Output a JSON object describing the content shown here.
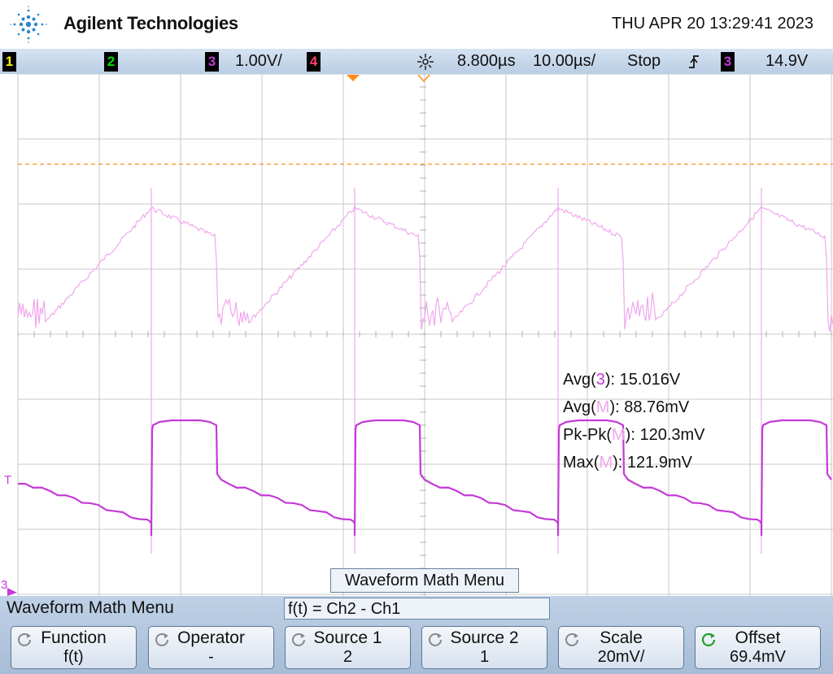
{
  "header": {
    "brand": "Agilent Technologies",
    "datetime": "THU APR 20 13:29:41 2023"
  },
  "status_bar": {
    "ch1": "1",
    "ch2": "2",
    "ch3": "3",
    "ch3_scale": "1.00V/",
    "ch4": "4",
    "delay": "8.800µs",
    "timebase": "10.00µs/",
    "run_state": "Stop",
    "trigger_source": "3",
    "trigger_level": "14.9V"
  },
  "markers": {
    "trigger_level_marker": "T",
    "ch3_ground_marker": "3"
  },
  "measurements": {
    "avg3": {
      "label": "Avg(",
      "src": "3",
      "tail": "): 15.016V"
    },
    "avgm": {
      "label": "Avg(",
      "src": "M",
      "tail": "): 88.76mV"
    },
    "pkpk": {
      "label": "Pk-Pk(",
      "src": "M",
      "tail": "): 120.3mV"
    },
    "max": {
      "label": "Max(",
      "src": "M",
      "tail": "): 121.9mV"
    }
  },
  "math_menu_label": "Waveform Math Menu",
  "softkey_panel": {
    "title": "Waveform Math Menu",
    "function_expr": "f(t) = Ch2 - Ch1",
    "keys": [
      {
        "label": "Function",
        "value": "f(t)"
      },
      {
        "label": "Operator",
        "value": "-"
      },
      {
        "label": "Source 1",
        "value": "2"
      },
      {
        "label": "Source 2",
        "value": "1"
      },
      {
        "label": "Scale",
        "value": "20mV/"
      },
      {
        "label": "Offset",
        "value": "69.4mV"
      }
    ]
  },
  "colors": {
    "ch1": "#f5f500",
    "ch2": "#00e000",
    "ch3": "#c33bd6",
    "ch4": "#ff3f72",
    "math": "#f0a7ee",
    "trigger_line": "#ff8c1a",
    "grid": "#c8c8c8"
  },
  "icons": {
    "logo": "agilent-spark-icon",
    "trigger_mode": "trigger-rising-edge-icon",
    "delay": "sun-delay-icon",
    "softkey_knob": "rotate-knob-icon"
  }
}
